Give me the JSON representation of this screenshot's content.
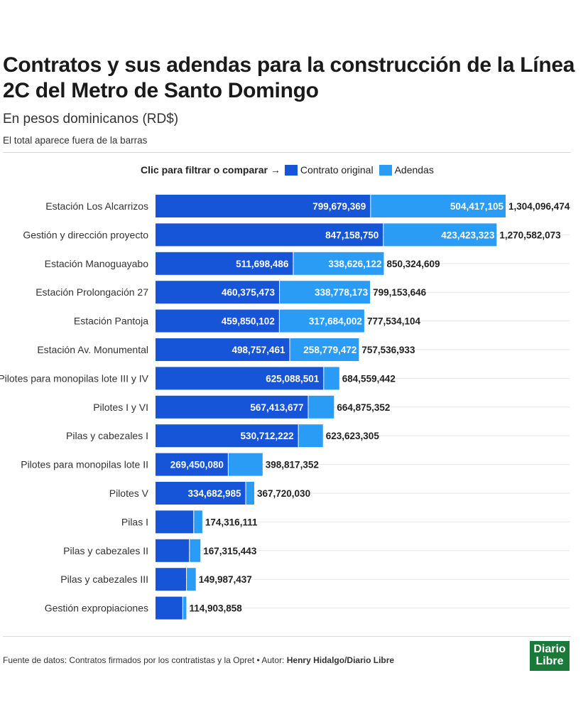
{
  "header": {
    "title": "Contratos y sus adendas para la construcción de la Línea 2C del Metro de Santo Domingo",
    "subtitle": "En pesos dominicanos (RD$)",
    "note": "El total aparece fuera de la barras"
  },
  "legend": {
    "lead": "Clic para filtrar o comparar →",
    "items": [
      "Contrato original",
      "Adendas"
    ]
  },
  "colors": {
    "original": "#1654d8",
    "adendas": "#2b9cf5",
    "grid": "#e6e6e6"
  },
  "footer": {
    "source": "Fuente de datos: Contratos firmados por los contratistas y la Opret • Autor: ",
    "author": "Henry Hidalgo/Diario Libre"
  },
  "logo": {
    "line1": "Diario",
    "line2": "Libre"
  },
  "chart_data": {
    "type": "bar",
    "orientation": "horizontal",
    "stacked": true,
    "categories": [
      "Estación Los Alcarrizos",
      "Gestión y dirección proyecto",
      "Estación Manoguayabo",
      "Estación Prolongación 27",
      "Estación Pantoja",
      "Estación Av. Monumental",
      "Pilotes para monopilas lote III y IV",
      "Pilotes I y VI",
      "Pilas y cabezales I",
      "Pilotes para monopilas lote II",
      "Pilotes V",
      "Pilas I",
      "Pilas y cabezales II",
      "Pilas y cabezales III",
      "Gestión expropiaciones"
    ],
    "series": [
      {
        "name": "Contrato original",
        "values": [
          799679369,
          847158750,
          511698486,
          460375473,
          459850102,
          498757461,
          625088501,
          567413677,
          530712222,
          269450080,
          334682985,
          141000000,
          125000000,
          114000000,
          100000000
        ],
        "labels": [
          "799,679,369",
          "847,158,750",
          "511,698,486",
          "460,375,473",
          "459,850,102",
          "498,757,461",
          "625,088,501",
          "567,413,677",
          "530,712,222",
          "269,450,080",
          "334,682,985",
          "",
          "",
          "",
          ""
        ]
      },
      {
        "name": "Adendas",
        "values": [
          504417105,
          423423323,
          338626122,
          338778173,
          317684002,
          258779472,
          59470941,
          97461675,
          92911083,
          129367272,
          33037045,
          33316111,
          42315443,
          35987437,
          14903858
        ],
        "labels": [
          "504,417,105",
          "423,423,323",
          "338,626,122",
          "338,778,173",
          "317,684,002",
          "258,779,472",
          "",
          "",
          "",
          "",
          "",
          "",
          "",
          "",
          ""
        ]
      }
    ],
    "totals": [
      "1,304,096,474",
      "1,270,582,073",
      "850,324,609",
      "799,153,646",
      "777,534,104",
      "757,536,933",
      "684,559,442",
      "664,875,352",
      "623,623,305",
      "398,817,352",
      "367,720,030",
      "174,316,111",
      "167,315,443",
      "149,987,437",
      "114,903,858"
    ],
    "xlim": [
      0,
      1304096474
    ],
    "grid": true,
    "legend_position": "top"
  }
}
